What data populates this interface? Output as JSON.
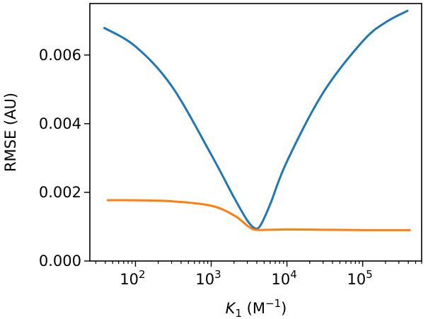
{
  "chart_data": {
    "type": "line",
    "title": "",
    "xlabel": "K₁ (M⁻¹)",
    "ylabel": "RMSE (AU)",
    "xscale": "log",
    "xlim": [
      25,
      600000
    ],
    "ylim": [
      0.0,
      0.0075
    ],
    "grid": false,
    "legend": "none",
    "x_ticks": [
      {
        "value": 100,
        "label": "10",
        "exp": "2"
      },
      {
        "value": 1000,
        "label": "10",
        "exp": "3"
      },
      {
        "value": 10000,
        "label": "10",
        "exp": "4"
      },
      {
        "value": 100000,
        "label": "10",
        "exp": "5"
      }
    ],
    "y_ticks": [
      {
        "value": 0.0,
        "label": "0.000"
      },
      {
        "value": 0.002,
        "label": "0.002"
      },
      {
        "value": 0.004,
        "label": "0.004"
      },
      {
        "value": 0.006,
        "label": "0.006"
      }
    ],
    "series": [
      {
        "color": "#1f77b4",
        "x": [
          38,
          100,
          300,
          1000,
          2000,
          3000,
          3800,
          4500,
          6000,
          10000,
          30000,
          100000,
          200000,
          400000
        ],
        "y": [
          0.0068,
          0.00625,
          0.0051,
          0.0031,
          0.00185,
          0.00118,
          0.00095,
          0.00105,
          0.00165,
          0.0029,
          0.0049,
          0.0064,
          0.00695,
          0.0073
        ]
      },
      {
        "color": "#ff7f0e",
        "x": [
          42,
          100,
          300,
          1000,
          2000,
          3000,
          3800,
          6000,
          10000,
          30000,
          100000,
          430000
        ],
        "y": [
          0.00177,
          0.00177,
          0.00174,
          0.00161,
          0.00133,
          0.00103,
          0.00091,
          0.00091,
          0.00092,
          0.00091,
          0.0009,
          0.0009
        ]
      }
    ]
  }
}
